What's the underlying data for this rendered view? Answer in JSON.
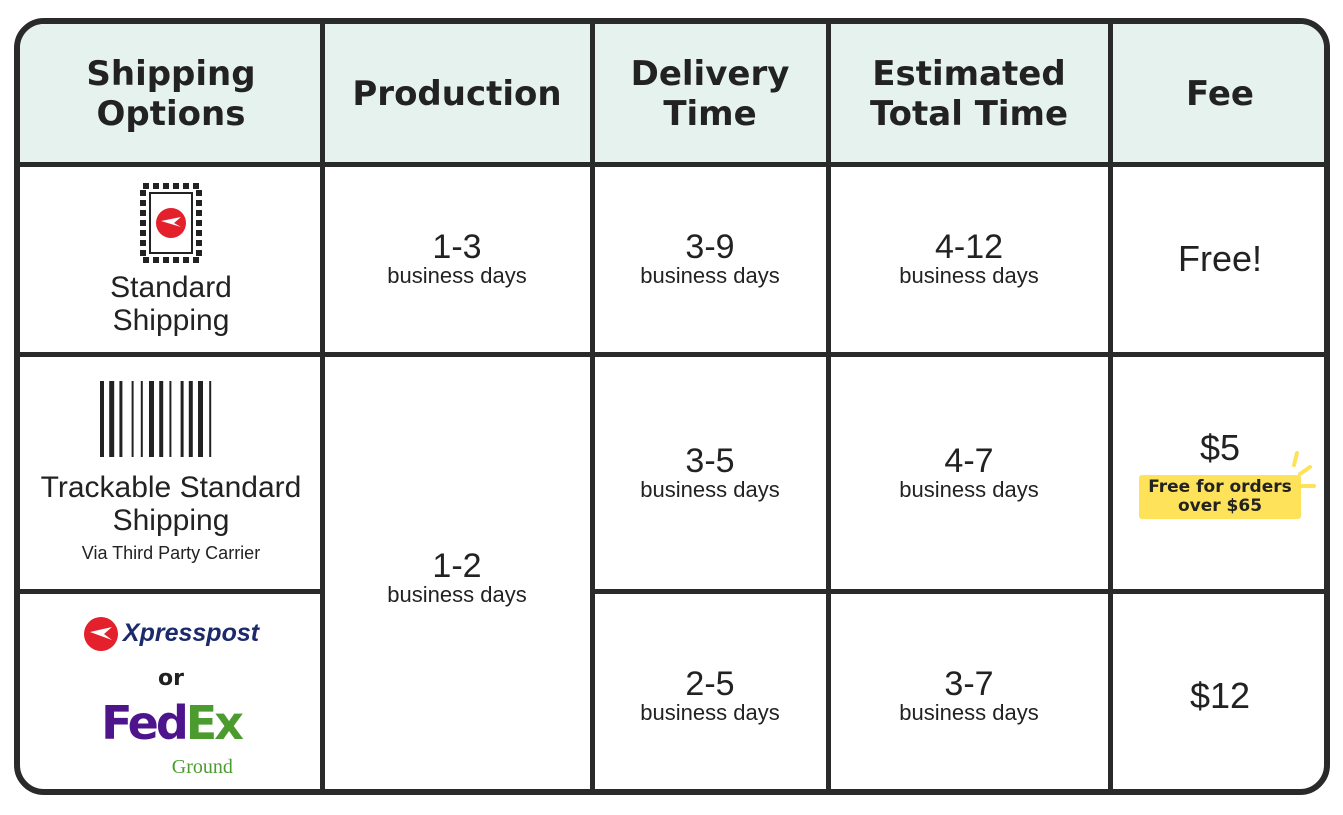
{
  "header": {
    "columns": [
      "Shipping Options",
      "Production",
      "Delivery Time",
      "Estimated Total Time",
      "Fee"
    ]
  },
  "rows": [
    {
      "option": {
        "name": "Standard Shipping"
      },
      "production": {
        "value": "1-3",
        "unit": "business days"
      },
      "delivery": {
        "value": "3-9",
        "unit": "business days"
      },
      "total": {
        "value": "4-12",
        "unit": "business days"
      },
      "fee": {
        "value": "Free!"
      }
    },
    {
      "option": {
        "name": "Trackable Standard Shipping",
        "note": "Via Third Party Carrier"
      },
      "production": {
        "value": "1-2",
        "unit": "business days"
      },
      "delivery": {
        "value": "3-5",
        "unit": "business days"
      },
      "total": {
        "value": "4-7",
        "unit": "business days"
      },
      "fee": {
        "value": "$5",
        "badge": "Free for orders over $65"
      }
    },
    {
      "option": {
        "logo_1": "Xpresspost",
        "separator": "or",
        "logo_2_left": "Fed",
        "logo_2_right": "Ex",
        "logo_2_sub": "Ground"
      },
      "delivery": {
        "value": "2-5",
        "unit": "business days"
      },
      "total": {
        "value": "3-7",
        "unit": "business days"
      },
      "fee": {
        "value": "$12"
      }
    }
  ]
}
